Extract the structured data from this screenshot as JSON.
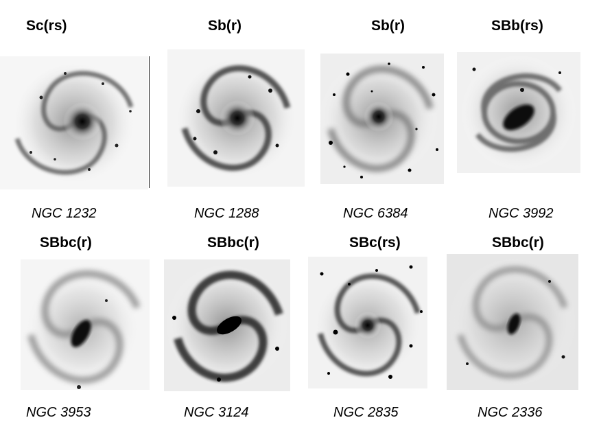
{
  "galaxies": [
    {
      "type": "Sc(rs)",
      "name": "NGC 1232"
    },
    {
      "type": "Sb(r)",
      "name": "NGC 1288"
    },
    {
      "type": "Sb(r)",
      "name": "NGC  6384"
    },
    {
      "type": "SBb(rs)",
      "name": "NGC 3992"
    },
    {
      "type": "SBbc(r)",
      "name": "NGC 3953"
    },
    {
      "type": "SBbc(r)",
      "name": "NGC 3124"
    },
    {
      "type": "SBc(rs)",
      "name": "NGC 2835"
    },
    {
      "type": "SBbc(r)",
      "name": "NGC  2336"
    }
  ]
}
